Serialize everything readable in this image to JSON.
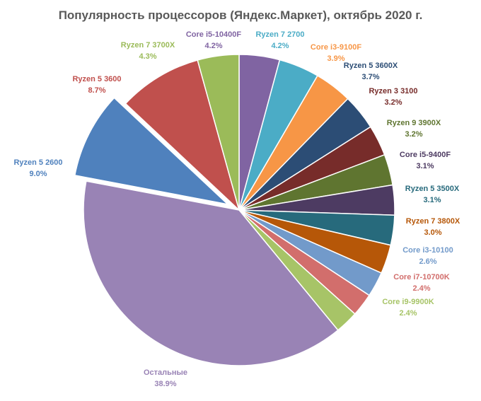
{
  "chart_data": {
    "type": "pie",
    "title": "Популярность процессоров (Яндекс.Маркет), октябрь 2020 г.",
    "start_angle_deg": 90,
    "exploded_slice": "Ryzen 5 2600",
    "slices": [
      {
        "label": "Core i5-10400F",
        "value": 4.2,
        "display": "4.2%",
        "color": "#8064a2"
      },
      {
        "label": "Ryzen 7 2700",
        "value": 4.2,
        "display": "4.2%",
        "color": "#4bacc6"
      },
      {
        "label": "Core i3-9100F",
        "value": 3.9,
        "display": "3.9%",
        "color": "#f79646"
      },
      {
        "label": "Ryzen 5 3600X",
        "value": 3.7,
        "display": "3.7%",
        "color": "#2c4d75"
      },
      {
        "label": "Ryzen 3 3100",
        "value": 3.2,
        "display": "3.2%",
        "color": "#772c2a"
      },
      {
        "label": "Ryzen 9 3900X",
        "value": 3.2,
        "display": "3.2%",
        "color": "#5f7530"
      },
      {
        "label": "Core i5-9400F",
        "value": 3.1,
        "display": "3.1%",
        "color": "#4d3b62"
      },
      {
        "label": "Ryzen 5 3500X",
        "value": 3.1,
        "display": "3.1%",
        "color": "#276a7c"
      },
      {
        "label": "Ryzen 7 3800X",
        "value": 3.0,
        "display": "3.0%",
        "color": "#b65708"
      },
      {
        "label": "Core i3-10100",
        "value": 2.6,
        "display": "2.6%",
        "color": "#729aca"
      },
      {
        "label": "Core i7-10700K",
        "value": 2.4,
        "display": "2.4%",
        "color": "#d26e6c"
      },
      {
        "label": "Core i9-9900K",
        "value": 2.4,
        "display": "2.4%",
        "color": "#a7c467"
      },
      {
        "label": "Остальные",
        "value": 38.9,
        "display": "38.9%",
        "color": "#9983b5"
      },
      {
        "label": "Ryzen 5 2600",
        "value": 9.0,
        "display": "9.0%",
        "color": "#4f81bd"
      },
      {
        "label": "Ryzen 5 3600",
        "value": 8.7,
        "display": "8.7%",
        "color": "#c0504d"
      },
      {
        "label": "Ryzen 7 3700X",
        "value": 4.3,
        "display": "4.3%",
        "color": "#9bbb59"
      }
    ]
  }
}
